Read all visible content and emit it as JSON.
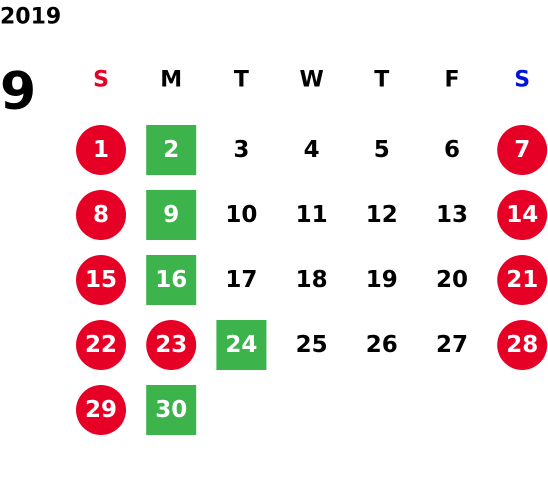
{
  "year": "2019",
  "month": "9",
  "first_weekday": 0,
  "circle_color": "#e60026",
  "square_color": "#3cb44b",
  "weekdays": [
    {
      "label": "S",
      "color": "#e60026"
    },
    {
      "label": "M",
      "color": "#000000"
    },
    {
      "label": "T",
      "color": "#000000"
    },
    {
      "label": "W",
      "color": "#000000"
    },
    {
      "label": "T",
      "color": "#000000"
    },
    {
      "label": "F",
      "color": "#000000"
    },
    {
      "label": "S",
      "color": "#0015d6"
    }
  ],
  "days": [
    {
      "label": "1",
      "mark": "circle"
    },
    {
      "label": "2",
      "mark": "square"
    },
    {
      "label": "3",
      "mark": null
    },
    {
      "label": "4",
      "mark": null
    },
    {
      "label": "5",
      "mark": null
    },
    {
      "label": "6",
      "mark": null
    },
    {
      "label": "7",
      "mark": "circle"
    },
    {
      "label": "8",
      "mark": "circle"
    },
    {
      "label": "9",
      "mark": "square"
    },
    {
      "label": "10",
      "mark": null
    },
    {
      "label": "11",
      "mark": null
    },
    {
      "label": "12",
      "mark": null
    },
    {
      "label": "13",
      "mark": null
    },
    {
      "label": "14",
      "mark": "circle"
    },
    {
      "label": "15",
      "mark": "circle"
    },
    {
      "label": "16",
      "mark": "square"
    },
    {
      "label": "17",
      "mark": null
    },
    {
      "label": "18",
      "mark": null
    },
    {
      "label": "19",
      "mark": null
    },
    {
      "label": "20",
      "mark": null
    },
    {
      "label": "21",
      "mark": "circle"
    },
    {
      "label": "22",
      "mark": "circle"
    },
    {
      "label": "23",
      "mark": "circle"
    },
    {
      "label": "24",
      "mark": "square"
    },
    {
      "label": "25",
      "mark": null
    },
    {
      "label": "26",
      "mark": null
    },
    {
      "label": "27",
      "mark": null
    },
    {
      "label": "28",
      "mark": "circle"
    },
    {
      "label": "29",
      "mark": "circle"
    },
    {
      "label": "30",
      "mark": "square"
    }
  ]
}
